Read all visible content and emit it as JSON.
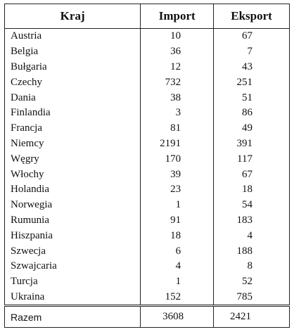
{
  "table": {
    "header": [
      "Kraj",
      "Import",
      "Eksport"
    ],
    "rows": [
      [
        "Austria",
        10,
        67
      ],
      [
        "Belgia",
        36,
        7
      ],
      [
        "Bułgaria",
        12,
        43
      ],
      [
        "Czechy",
        732,
        251
      ],
      [
        "Dania",
        38,
        51
      ],
      [
        "Finlandia",
        3,
        86
      ],
      [
        "Francja",
        81,
        49
      ],
      [
        "Niemcy",
        2191,
        391
      ],
      [
        "Węgry",
        170,
        117
      ],
      [
        "Włochy",
        39,
        67
      ],
      [
        "Holandia",
        23,
        18
      ],
      [
        "Norwegia",
        1,
        54
      ],
      [
        "Rumunia",
        91,
        183
      ],
      [
        "Hiszpania",
        18,
        4
      ],
      [
        "Szwecja",
        6,
        188
      ],
      [
        "Szwajcaria",
        4,
        8
      ],
      [
        "Turcja",
        1,
        52
      ],
      [
        "Ukraina",
        152,
        785
      ]
    ],
    "total": [
      "Razem",
      3608,
      2421
    ]
  }
}
